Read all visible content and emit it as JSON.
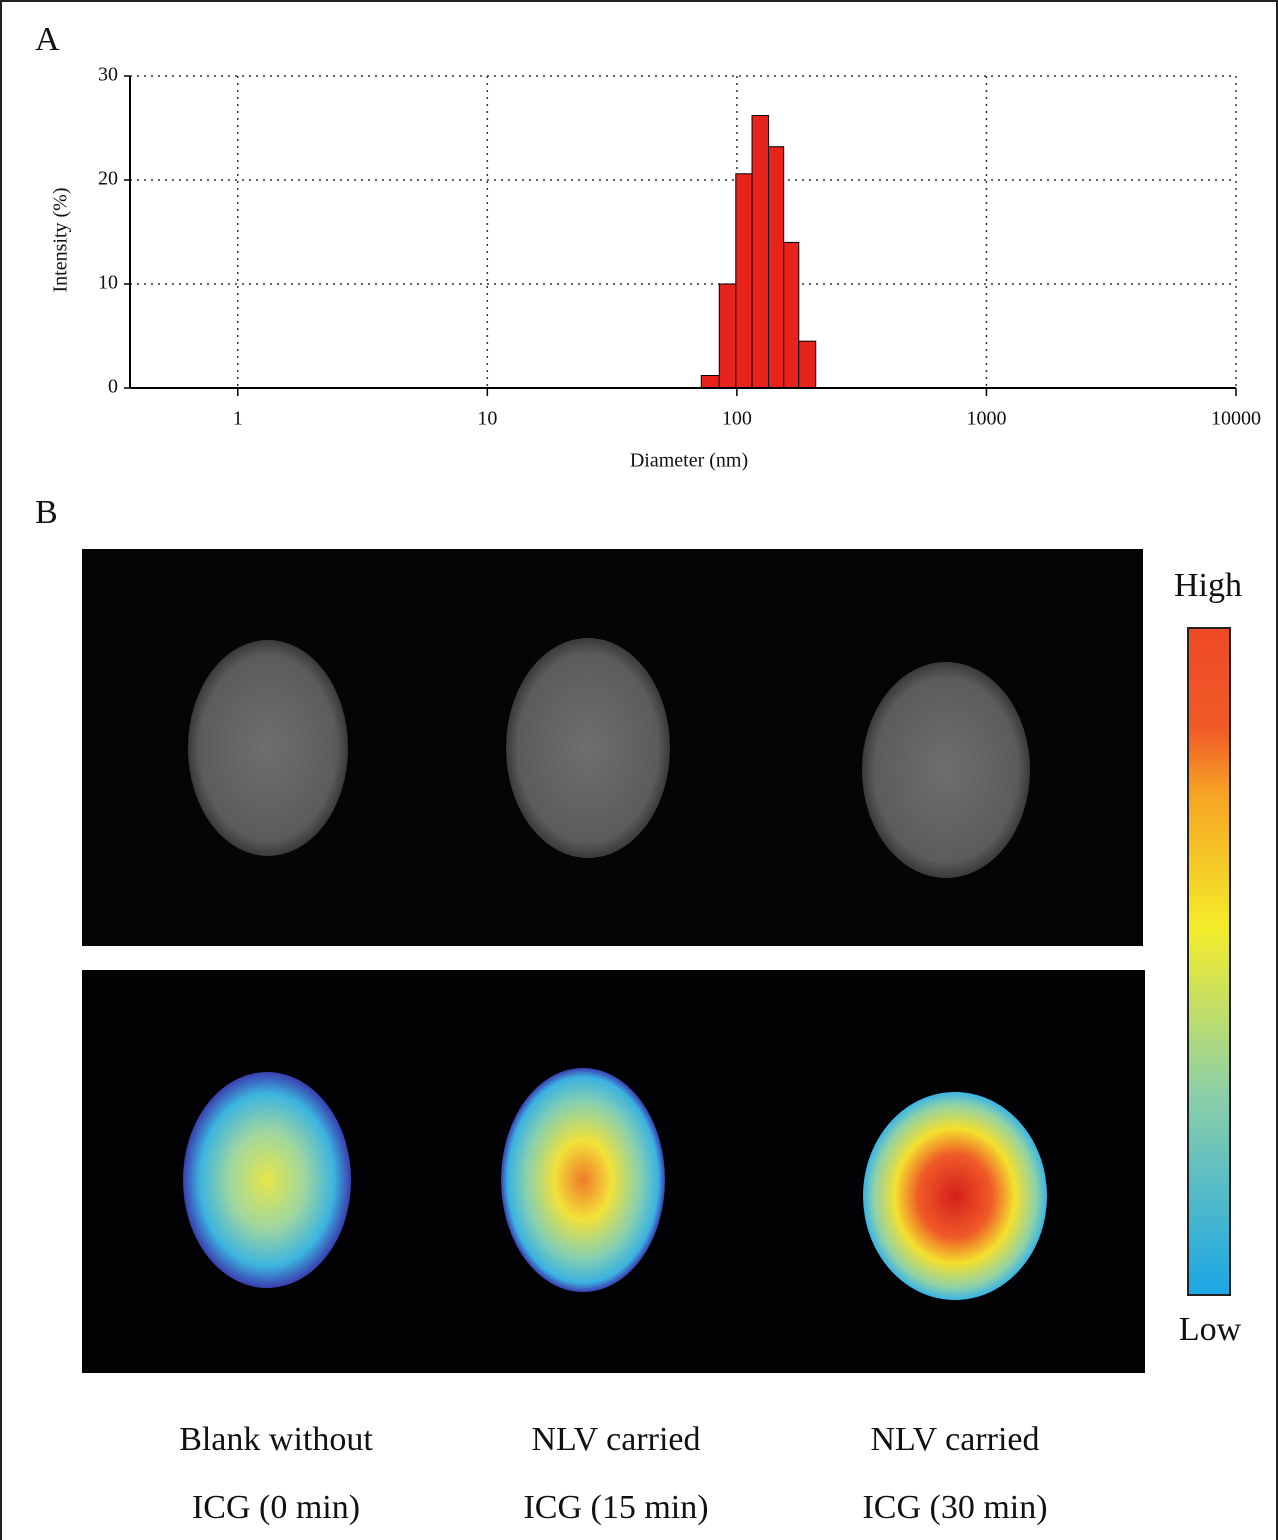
{
  "chart_data": {
    "type": "histogram",
    "xlabel": "Diameter (nm)",
    "ylabel": "Intensity (%)",
    "bins": [
      72,
      85,
      99,
      115,
      134,
      154,
      177,
      207
    ],
    "values": [
      1.2,
      10,
      20.6,
      26.2,
      23.2,
      14,
      4.5
    ],
    "color": "#e8231b",
    "edgecolor": "#000000",
    "xscale": "log",
    "xlim": [
      0.37,
      10000
    ],
    "xticks": [
      1,
      10,
      100,
      1000,
      10000
    ],
    "ylim": [
      0,
      30
    ],
    "yticks": [
      0,
      10,
      20,
      30
    ],
    "grid": true
  },
  "panel_labels": [
    "A",
    "B"
  ],
  "colorbar": {
    "high": "High",
    "low": "Low"
  },
  "captions": [
    [
      "Blank without",
      "ICG (0 min)"
    ],
    [
      "NLV carried",
      "ICG (15 min)"
    ],
    [
      "NLV carried",
      "ICG (30 min)"
    ]
  ]
}
